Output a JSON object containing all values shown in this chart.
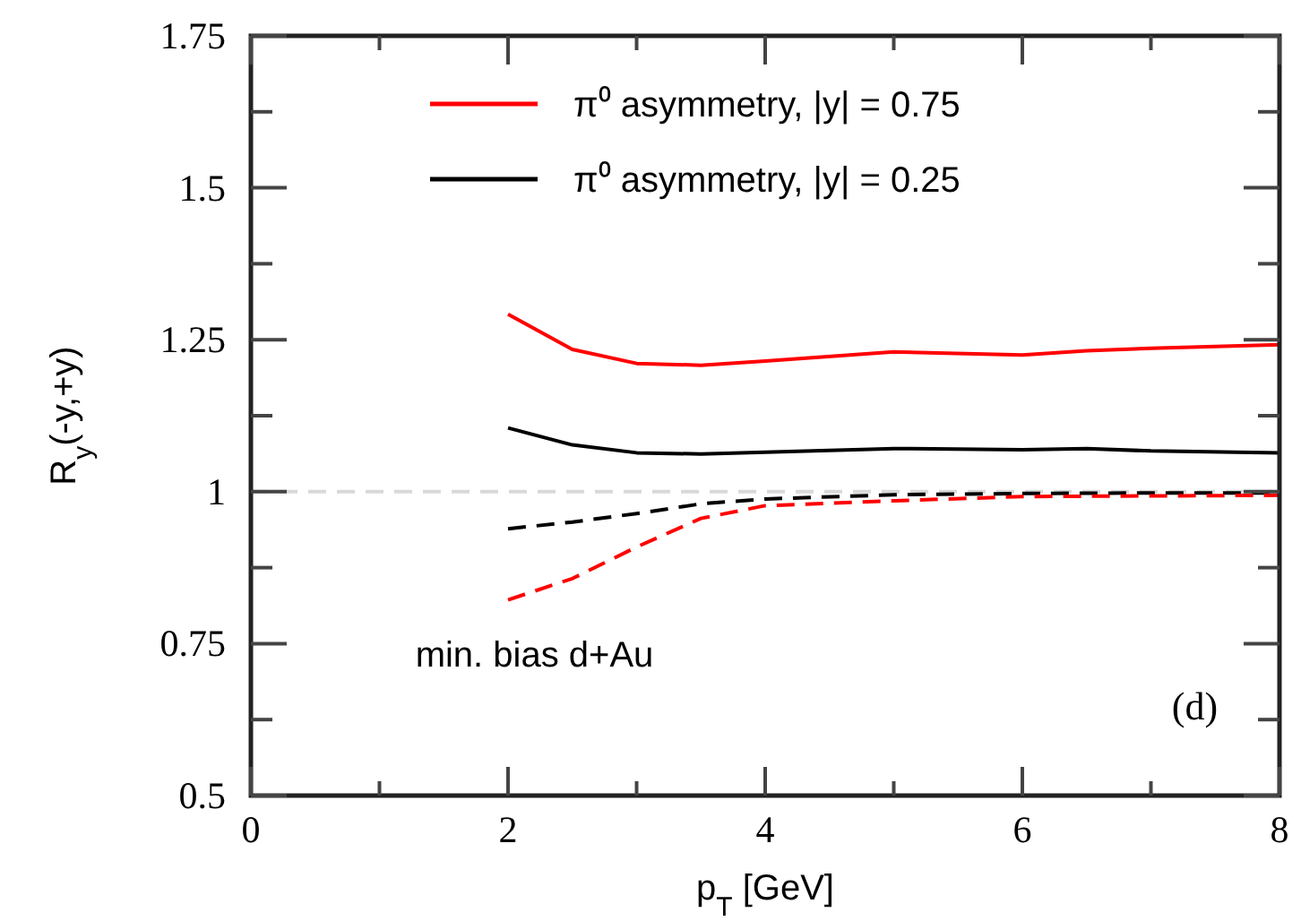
{
  "chart_data": {
    "type": "line",
    "xlabel": "p$_{T}$ [GeV]",
    "ylabel": "R$_{y}$(-y,+y)",
    "xlim": [
      0,
      8
    ],
    "xticks": [
      0,
      {
        "value": 1,
        "label": null
      },
      2,
      {
        "value": 3,
        "label": null
      },
      4,
      {
        "value": 5,
        "label": null
      },
      6,
      {
        "value": 7,
        "label": null
      },
      8
    ],
    "ylim": [
      0.5,
      1.75
    ],
    "yticks": [
      0.5,
      {
        "value": 0.625,
        "label": null
      },
      0.75,
      {
        "value": 0.875,
        "label": null
      },
      1,
      {
        "value": 1.125,
        "label": null
      },
      1.25,
      {
        "value": 1.375,
        "label": null
      },
      1.5,
      {
        "value": 1.625,
        "label": null
      },
      1.75
    ],
    "grid": false,
    "legend": "top",
    "line_style": "solid",
    "series": [
      {
        "name": "π⁰ asymmetry, |y| = 0.75",
        "color": "#ff0000",
        "x": [
          2,
          2.5,
          3,
          3.5,
          4,
          5,
          6,
          6.5,
          7,
          8
        ],
        "values": [
          1.292,
          1.234,
          1.211,
          1.208,
          1.215,
          1.23,
          1.225,
          1.232,
          1.236,
          1.242
        ]
      },
      {
        "name": "π⁰ asymmetry, |y| = 0.25",
        "color": "#000000",
        "x": [
          2,
          2.5,
          3,
          3.5,
          4,
          5,
          6,
          6.5,
          7,
          8
        ],
        "values": [
          1.105,
          1.077,
          1.064,
          1.062,
          1.065,
          1.071,
          1.069,
          1.071,
          1.067,
          1.064
        ]
      },
      {
        "color": "#000000",
        "line_style": "dashed",
        "x": [
          2,
          2.5,
          3,
          3.5,
          4,
          5,
          6,
          7,
          8
        ],
        "values": [
          0.939,
          0.95,
          0.964,
          0.98,
          0.988,
          0.995,
          0.997,
          0.998,
          0.998
        ]
      },
      {
        "color": "#ff0000",
        "line_style": "dashed",
        "x": [
          2,
          2.5,
          3,
          3.5,
          4,
          5,
          6,
          7,
          8
        ],
        "values": [
          0.822,
          0.857,
          0.909,
          0.956,
          0.977,
          0.985,
          0.992,
          0.993,
          0.994
        ]
      }
    ],
    "ref_lines": [
      {
        "axis": "y",
        "value": 1,
        "color": "#d9d9d9",
        "line_style": "dashed"
      }
    ],
    "annotations": [
      "min. bias d+Au",
      "(d)"
    ]
  }
}
